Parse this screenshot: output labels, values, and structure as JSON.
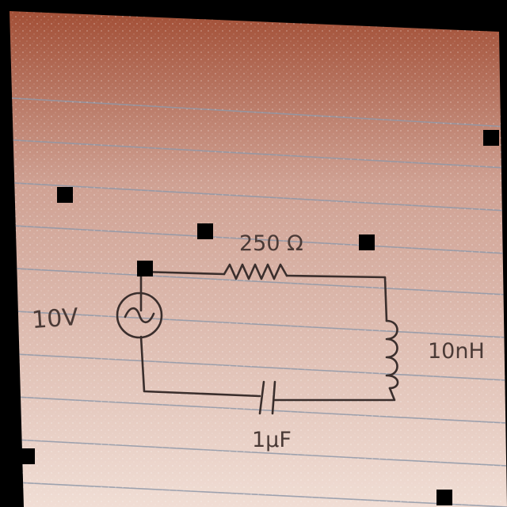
{
  "circuit": {
    "source_label": "10V",
    "resistor_label": "250 Ω",
    "inductor_label": "10nH",
    "capacitor_label": "1µF"
  },
  "colors": {
    "paper_top": "#a85a3f",
    "paper_bottom": "#f2dfd6",
    "rule_line": "#8f98a8",
    "ink": "#3a2e2c"
  }
}
